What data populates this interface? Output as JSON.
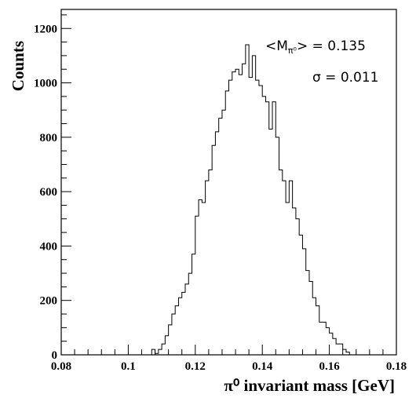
{
  "chart_data": {
    "type": "histogram",
    "xlabel": "π⁰ invariant mass [GeV]",
    "ylabel": "Counts",
    "xlim": [
      0.08,
      0.18
    ],
    "ylim": [
      0,
      1270
    ],
    "x_ticks": [
      "0.08",
      "0.1",
      "0.12",
      "0.14",
      "0.16",
      "0.18"
    ],
    "y_ticks": [
      "0",
      "200",
      "400",
      "600",
      "800",
      "1000",
      "1200"
    ],
    "y_tick_values": [
      0,
      200,
      400,
      600,
      800,
      1000,
      1200
    ],
    "bin_start": 0.107,
    "bin_width": 0.001,
    "counts": [
      20,
      5,
      20,
      40,
      70,
      110,
      150,
      180,
      210,
      230,
      260,
      300,
      370,
      510,
      570,
      560,
      640,
      680,
      770,
      820,
      870,
      900,
      970,
      1010,
      1040,
      1050,
      1030,
      1070,
      1140,
      1020,
      1100,
      1010,
      990,
      950,
      930,
      830,
      930,
      800,
      680,
      640,
      560,
      640,
      540,
      500,
      440,
      390,
      310,
      270,
      210,
      180,
      120,
      120,
      100,
      80,
      60,
      40,
      40,
      20,
      10
    ],
    "annotations": {
      "mean_prefix": "<M",
      "mean_subscript": "π⁰",
      "mean_suffix": "> = 0.135",
      "sigma": "σ = 0.011"
    }
  }
}
